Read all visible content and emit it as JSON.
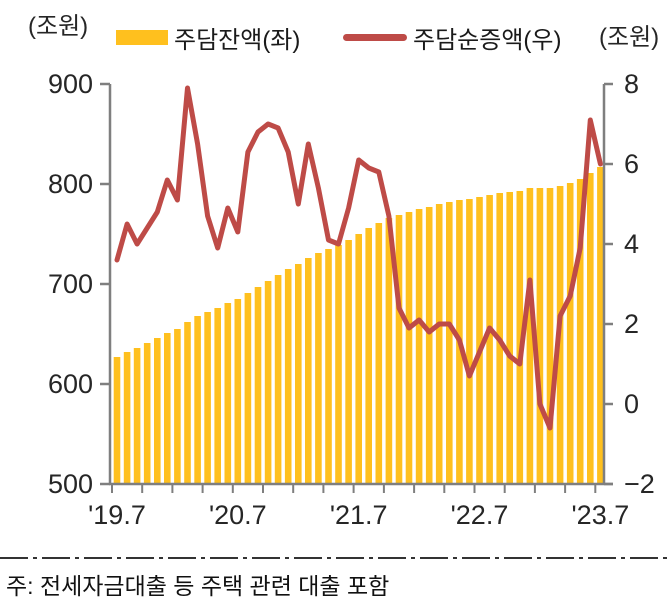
{
  "chart_data": {
    "type": "combo-bar-line",
    "x_monthly": [
      "2019-07",
      "2019-08",
      "2019-09",
      "2019-10",
      "2019-11",
      "2019-12",
      "2020-01",
      "2020-02",
      "2020-03",
      "2020-04",
      "2020-05",
      "2020-06",
      "2020-07",
      "2020-08",
      "2020-09",
      "2020-10",
      "2020-11",
      "2020-12",
      "2021-01",
      "2021-02",
      "2021-03",
      "2021-04",
      "2021-05",
      "2021-06",
      "2021-07",
      "2021-08",
      "2021-09",
      "2021-10",
      "2021-11",
      "2021-12",
      "2022-01",
      "2022-02",
      "2022-03",
      "2022-04",
      "2022-05",
      "2022-06",
      "2022-07",
      "2022-08",
      "2022-09",
      "2022-10",
      "2022-11",
      "2022-12",
      "2023-01",
      "2023-02",
      "2023-03",
      "2023-04",
      "2023-05",
      "2023-06",
      "2023-07"
    ],
    "series": [
      {
        "name": "주담잔액(좌)",
        "type": "bar",
        "axis": "left",
        "color": "#FFC01E",
        "values": [
          627,
          632,
          636,
          641,
          646,
          651,
          655,
          662,
          668,
          672,
          676,
          681,
          685,
          691,
          697,
          703,
          709,
          715,
          720,
          726,
          731,
          735,
          739,
          744,
          750,
          756,
          761,
          766,
          769,
          772,
          775,
          777,
          780,
          782,
          784,
          785,
          787,
          789,
          791,
          792,
          793,
          796,
          796,
          796,
          798,
          801,
          805,
          811,
          817
        ]
      },
      {
        "name": "주담순증액(우)",
        "type": "line",
        "axis": "right",
        "color": "#BE4B47",
        "values": [
          3.6,
          4.5,
          4.0,
          4.4,
          4.8,
          5.6,
          5.1,
          7.9,
          6.5,
          4.7,
          3.9,
          4.9,
          4.3,
          6.3,
          6.8,
          7.0,
          6.9,
          6.3,
          5.0,
          6.5,
          5.4,
          4.1,
          4.0,
          4.9,
          6.1,
          5.9,
          5.8,
          4.7,
          2.4,
          1.9,
          2.1,
          1.8,
          2.0,
          2.0,
          1.6,
          0.7,
          1.3,
          1.9,
          1.6,
          1.2,
          1.0,
          3.1,
          0.0,
          -0.6,
          2.2,
          2.7,
          3.9,
          7.1,
          6.0
        ]
      }
    ],
    "left_axis": {
      "unit": "(조원)",
      "min": 500,
      "max": 900,
      "ticks": [
        900,
        800,
        700,
        600,
        500
      ]
    },
    "right_axis": {
      "unit": "(조원)",
      "min": -2,
      "max": 8,
      "ticks": [
        8,
        6,
        4,
        2,
        0,
        -2
      ]
    },
    "x_axis": {
      "labels": [
        "'19.7",
        "'20.7",
        "'21.7",
        "'22.7",
        "'23.7"
      ],
      "label_every_months": 12,
      "minor_tick_every_months": 3
    },
    "grid": "off",
    "legend_position": "top",
    "note": "주: 전세자금대출 등 주택 관련 대출 포함"
  },
  "colors": {
    "bar": "#FFC01E",
    "line": "#BE4B47",
    "axis": "#7F7F7F",
    "text": "#262626"
  }
}
